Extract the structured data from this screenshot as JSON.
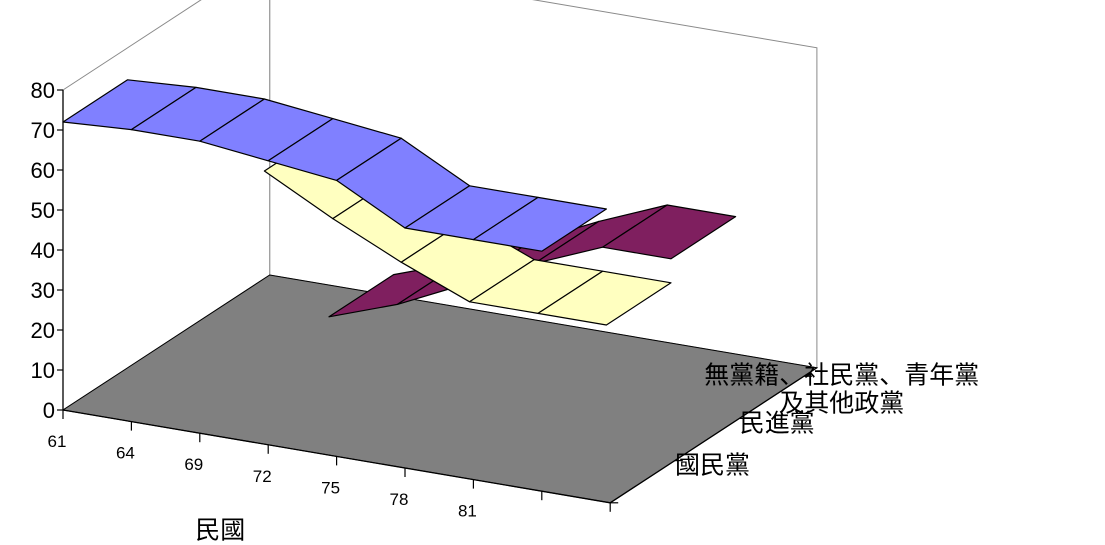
{
  "chart_data": {
    "type": "area",
    "xlabel": "民國",
    "ylabel": "",
    "ylim": [
      0,
      80
    ],
    "yticks": [
      "0",
      "10",
      "20",
      "30",
      "40",
      "50",
      "60",
      "70",
      "80"
    ],
    "categories": [
      "61",
      "64",
      "69",
      "72",
      "75",
      "78",
      "81"
    ],
    "series": [
      {
        "name": "國民黨",
        "values": [
          72,
          73,
          73,
          71,
          69,
          60,
          60
        ],
        "color": "#8080FF"
      },
      {
        "name": "民進黨",
        "values": [
          null,
          null,
          55,
          46,
          38,
          31,
          31
        ],
        "color": "#FFFFC0"
      },
      {
        "name": "無黨籍、社民黨、青年黨及其他政黨",
        "values": [
          null,
          null,
          8,
          14,
          22,
          30,
          37
        ],
        "color": "#7F1F5F"
      }
    ],
    "series_label_lines": [
      [
        "國民黨"
      ],
      [
        "民進黨"
      ],
      [
        "無黨籍、社民黨、青年黨",
        "及其他政黨"
      ]
    ],
    "floor_color": "#808080",
    "grid": false,
    "projection": "3d"
  }
}
